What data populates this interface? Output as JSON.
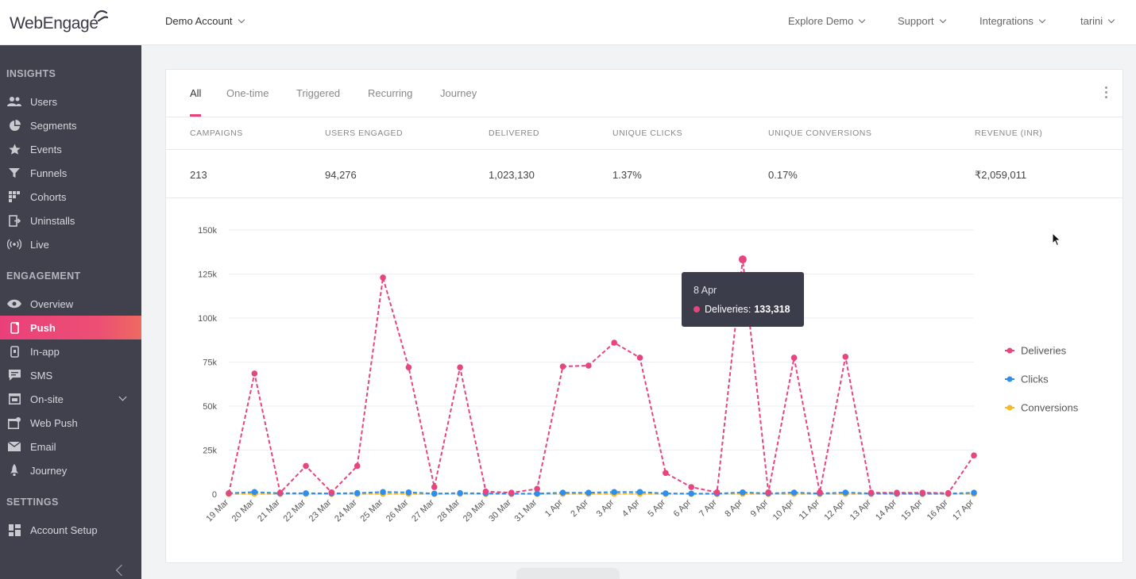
{
  "header": {
    "logo_text": "WebEngage",
    "account": "Demo Account",
    "nav": [
      "Explore Demo",
      "Support",
      "Integrations",
      "tarini"
    ]
  },
  "sidebar": {
    "sections": [
      {
        "title": "INSIGHTS",
        "items": [
          {
            "label": "Users",
            "icon": "users-icon"
          },
          {
            "label": "Segments",
            "icon": "pie-icon"
          },
          {
            "label": "Events",
            "icon": "star-icon"
          },
          {
            "label": "Funnels",
            "icon": "funnel-icon"
          },
          {
            "label": "Cohorts",
            "icon": "grid-icon"
          },
          {
            "label": "Uninstalls",
            "icon": "exit-icon"
          },
          {
            "label": "Live",
            "icon": "broadcast-icon"
          }
        ]
      },
      {
        "title": "ENGAGEMENT",
        "items": [
          {
            "label": "Overview",
            "icon": "eye-icon"
          },
          {
            "label": "Push",
            "icon": "phone-icon",
            "active": true
          },
          {
            "label": "In-app",
            "icon": "tablet-icon"
          },
          {
            "label": "SMS",
            "icon": "chat-icon"
          },
          {
            "label": "On-site",
            "icon": "window-icon",
            "expandable": true
          },
          {
            "label": "Web Push",
            "icon": "browser-icon"
          },
          {
            "label": "Email",
            "icon": "mail-icon"
          },
          {
            "label": "Journey",
            "icon": "rocket-icon"
          }
        ]
      },
      {
        "title": "SETTINGS",
        "items": [
          {
            "label": "Account Setup",
            "icon": "dashboard-icon"
          }
        ]
      }
    ]
  },
  "tabs": [
    {
      "label": "All",
      "active": true
    },
    {
      "label": "One-time"
    },
    {
      "label": "Triggered"
    },
    {
      "label": "Recurring"
    },
    {
      "label": "Journey"
    }
  ],
  "stats": {
    "headers": [
      "CAMPAIGNS",
      "USERS ENGAGED",
      "DELIVERED",
      "UNIQUE CLICKS",
      "UNIQUE CONVERSIONS",
      "REVENUE (INR)"
    ],
    "values": [
      "213",
      "94,276",
      "1,023,130",
      "1.37%",
      "0.17%",
      "₹2,059,011"
    ]
  },
  "tooltip": {
    "date": "8 Apr",
    "label": "Deliveries:",
    "value": "133,318"
  },
  "colors": {
    "accent": "#e9407a",
    "deliveries": "#e6457e",
    "clicks": "#2f8ee9",
    "conversions": "#f7b928",
    "sidebar_bg": "#41414d"
  },
  "chart_data": {
    "type": "line",
    "categories": [
      "19 Mar",
      "20 Mar",
      "21 Mar",
      "22 Mar",
      "23 Mar",
      "24 Mar",
      "25 Mar",
      "26 Mar",
      "27 Mar",
      "28 Mar",
      "29 Mar",
      "30 Mar",
      "31 Mar",
      "1 Apr",
      "2 Apr",
      "3 Apr",
      "4 Apr",
      "5 Apr",
      "6 Apr",
      "7 Apr",
      "8 Apr",
      "9 Apr",
      "10 Apr",
      "11 Apr",
      "12 Apr",
      "13 Apr",
      "14 Apr",
      "15 Apr",
      "16 Apr",
      "17 Apr"
    ],
    "yticks": [
      "0",
      "25k",
      "50k",
      "75k",
      "100k",
      "125k",
      "150k"
    ],
    "ylim": [
      0,
      150000
    ],
    "series": [
      {
        "name": "Deliveries",
        "color": "#e6457e",
        "values": [
          500,
          68500,
          800,
          16000,
          1000,
          16000,
          123000,
          72000,
          4000,
          72000,
          1500,
          800,
          3000,
          72500,
          73000,
          86000,
          77500,
          12000,
          4000,
          1000,
          133318,
          1000,
          77500,
          1000,
          78000,
          800,
          800,
          800,
          600,
          22000
        ]
      },
      {
        "name": "Clicks",
        "color": "#2f8ee9",
        "values": [
          500,
          1200,
          500,
          500,
          400,
          600,
          1200,
          1000,
          300,
          600,
          400,
          300,
          300,
          800,
          800,
          1200,
          1200,
          400,
          300,
          300,
          1000,
          400,
          900,
          400,
          900,
          400,
          300,
          300,
          300,
          800
        ]
      },
      {
        "name": "Conversions",
        "color": "#f7b928",
        "values": [
          100,
          200,
          100,
          150,
          100,
          100,
          200,
          150,
          100,
          150,
          100,
          100,
          100,
          150,
          150,
          200,
          200,
          100,
          100,
          100,
          200,
          100,
          150,
          100,
          150,
          100,
          100,
          100,
          100,
          150
        ]
      }
    ],
    "legend": "right",
    "grid": true
  }
}
